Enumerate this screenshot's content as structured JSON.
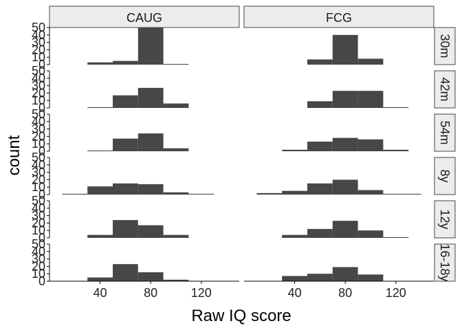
{
  "chart_data": {
    "type": "bar",
    "title": "",
    "xlabel": "Raw IQ score",
    "ylabel": "count",
    "xlim": [
      0,
      150
    ],
    "xticks": [
      40,
      80,
      120
    ],
    "ylim": [
      0,
      50
    ],
    "yticks": [
      0,
      10,
      20,
      30,
      40,
      50
    ],
    "bin_width": 20,
    "columns": [
      "CAUG",
      "FCG"
    ],
    "rows": [
      "30m",
      "42m",
      "54m",
      "8y",
      "12y",
      "16-18y"
    ],
    "grid": false,
    "panels": [
      {
        "row": "30m",
        "col": "CAUG",
        "bins": [
          {
            "x0": 30,
            "x1": 50,
            "count": 3
          },
          {
            "x0": 50,
            "x1": 70,
            "count": 5
          },
          {
            "x0": 70,
            "x1": 90,
            "count": 50
          },
          {
            "x0": 90,
            "x1": 110,
            "count": 0.5
          }
        ]
      },
      {
        "row": "30m",
        "col": "FCG",
        "bins": [
          {
            "x0": 50,
            "x1": 70,
            "count": 7
          },
          {
            "x0": 70,
            "x1": 90,
            "count": 40
          },
          {
            "x0": 90,
            "x1": 110,
            "count": 8
          }
        ]
      },
      {
        "row": "42m",
        "col": "CAUG",
        "bins": [
          {
            "x0": 30,
            "x1": 50,
            "count": 1
          },
          {
            "x0": 50,
            "x1": 70,
            "count": 17
          },
          {
            "x0": 70,
            "x1": 90,
            "count": 27
          },
          {
            "x0": 90,
            "x1": 110,
            "count": 6
          }
        ]
      },
      {
        "row": "42m",
        "col": "FCG",
        "bins": [
          {
            "x0": 50,
            "x1": 70,
            "count": 9
          },
          {
            "x0": 70,
            "x1": 90,
            "count": 23
          },
          {
            "x0": 90,
            "x1": 110,
            "count": 23
          },
          {
            "x0": 110,
            "x1": 130,
            "count": 1
          }
        ]
      },
      {
        "row": "54m",
        "col": "CAUG",
        "bins": [
          {
            "x0": 30,
            "x1": 50,
            "count": 1
          },
          {
            "x0": 50,
            "x1": 70,
            "count": 17
          },
          {
            "x0": 70,
            "x1": 90,
            "count": 24
          },
          {
            "x0": 90,
            "x1": 110,
            "count": 4
          }
        ]
      },
      {
        "row": "54m",
        "col": "FCG",
        "bins": [
          {
            "x0": 30,
            "x1": 50,
            "count": 2
          },
          {
            "x0": 50,
            "x1": 70,
            "count": 13
          },
          {
            "x0": 70,
            "x1": 90,
            "count": 18
          },
          {
            "x0": 90,
            "x1": 110,
            "count": 16
          },
          {
            "x0": 110,
            "x1": 130,
            "count": 2
          }
        ]
      },
      {
        "row": "8y",
        "col": "CAUG",
        "bins": [
          {
            "x0": 10,
            "x1": 30,
            "count": 1
          },
          {
            "x0": 30,
            "x1": 50,
            "count": 11
          },
          {
            "x0": 50,
            "x1": 70,
            "count": 15
          },
          {
            "x0": 70,
            "x1": 90,
            "count": 14
          },
          {
            "x0": 90,
            "x1": 110,
            "count": 3
          },
          {
            "x0": 110,
            "x1": 130,
            "count": 1
          }
        ]
      },
      {
        "row": "8y",
        "col": "FCG",
        "bins": [
          {
            "x0": 10,
            "x1": 30,
            "count": 2
          },
          {
            "x0": 30,
            "x1": 50,
            "count": 5
          },
          {
            "x0": 50,
            "x1": 70,
            "count": 15
          },
          {
            "x0": 70,
            "x1": 90,
            "count": 20
          },
          {
            "x0": 90,
            "x1": 110,
            "count": 6
          },
          {
            "x0": 110,
            "x1": 140,
            "count": 1
          }
        ]
      },
      {
        "row": "12y",
        "col": "CAUG",
        "bins": [
          {
            "x0": 30,
            "x1": 50,
            "count": 4
          },
          {
            "x0": 50,
            "x1": 70,
            "count": 24
          },
          {
            "x0": 70,
            "x1": 90,
            "count": 17
          },
          {
            "x0": 90,
            "x1": 110,
            "count": 4
          }
        ]
      },
      {
        "row": "12y",
        "col": "FCG",
        "bins": [
          {
            "x0": 30,
            "x1": 50,
            "count": 4
          },
          {
            "x0": 50,
            "x1": 70,
            "count": 12
          },
          {
            "x0": 70,
            "x1": 90,
            "count": 23
          },
          {
            "x0": 90,
            "x1": 110,
            "count": 10
          },
          {
            "x0": 110,
            "x1": 130,
            "count": 1
          }
        ]
      },
      {
        "row": "16-18y",
        "col": "CAUG",
        "bins": [
          {
            "x0": 30,
            "x1": 50,
            "count": 5
          },
          {
            "x0": 50,
            "x1": 70,
            "count": 23
          },
          {
            "x0": 70,
            "x1": 90,
            "count": 12
          },
          {
            "x0": 90,
            "x1": 110,
            "count": 2
          }
        ]
      },
      {
        "row": "16-18y",
        "col": "FCG",
        "bins": [
          {
            "x0": 30,
            "x1": 50,
            "count": 7
          },
          {
            "x0": 50,
            "x1": 70,
            "count": 10
          },
          {
            "x0": 70,
            "x1": 90,
            "count": 19
          },
          {
            "x0": 90,
            "x1": 110,
            "count": 9
          }
        ]
      }
    ]
  }
}
